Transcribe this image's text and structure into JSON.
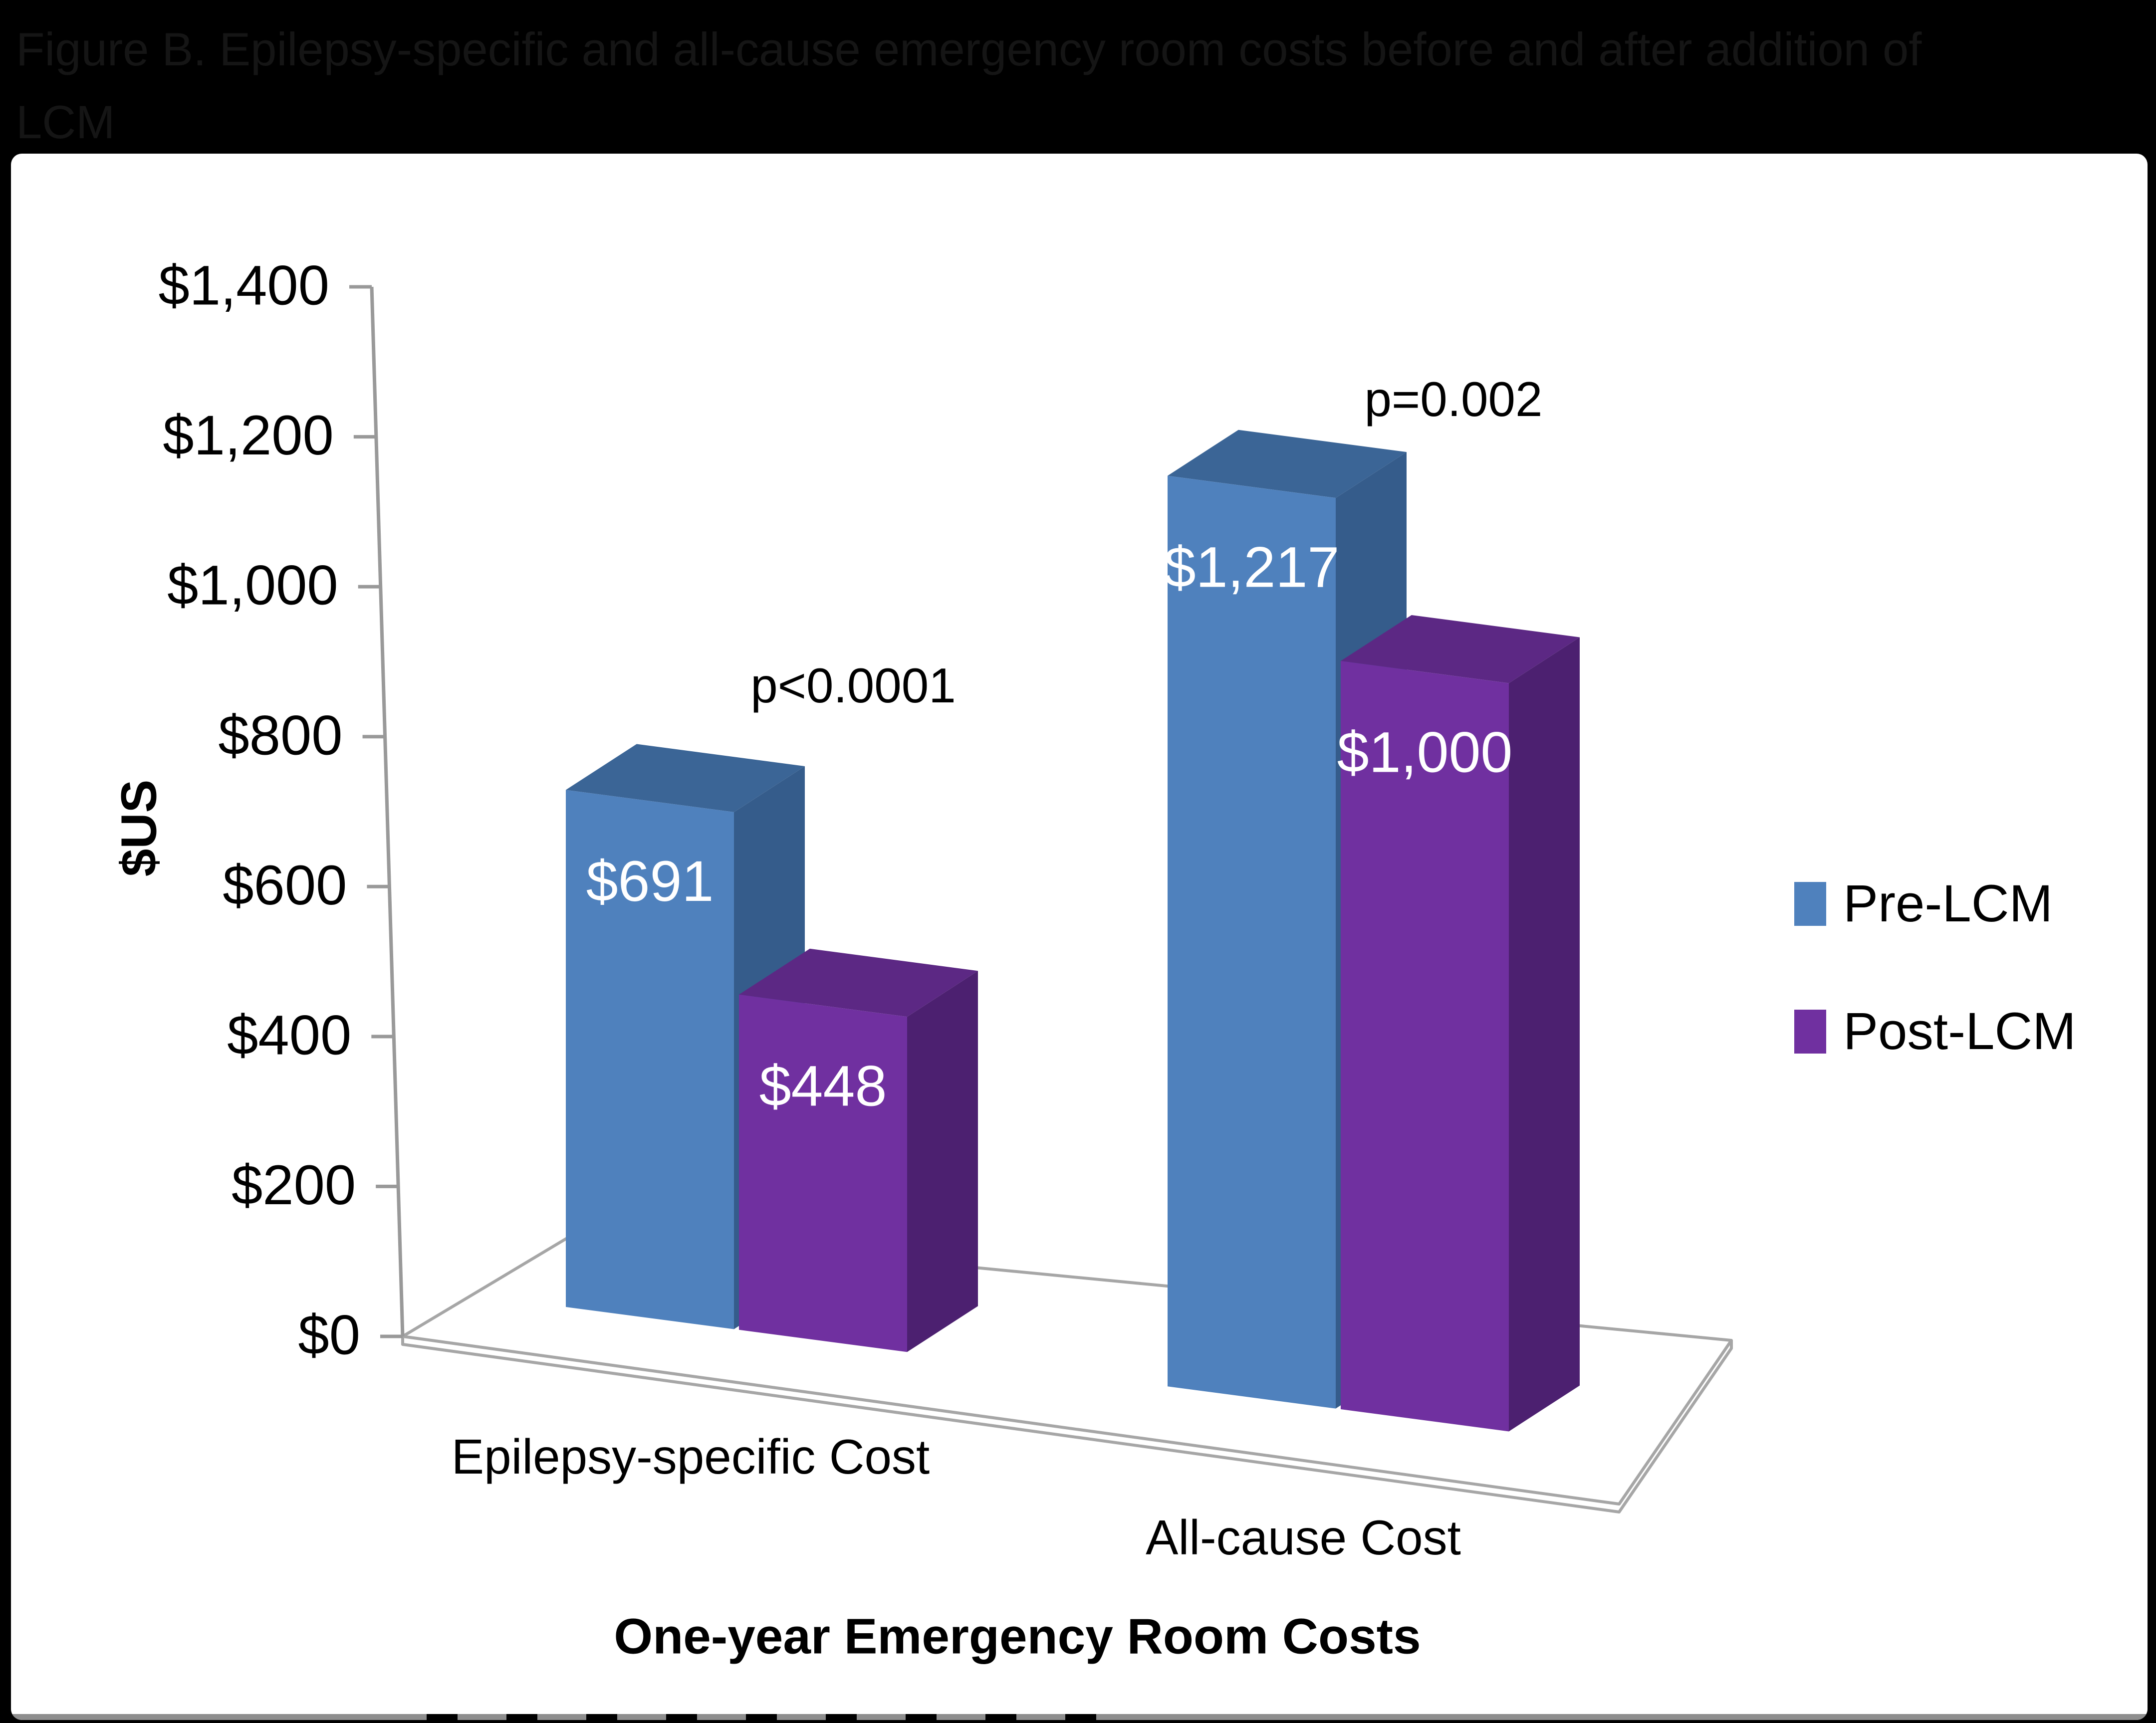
{
  "title": {
    "line1": "Figure B. Epilepsy-specific and all-cause emergency room costs before and after addition of",
    "line2": "LCM",
    "full": "Figure B. Epilepsy-specific and all-cause emergency room costs before and after addition of LCM"
  },
  "chart_data": {
    "type": "bar",
    "style": "3d-clustered-column",
    "title": "Figure B. Epilepsy-specific and all-cause emergency room costs before and after addition of LCM",
    "categories": [
      "Epilepsy-specific Cost",
      "All-cause Cost"
    ],
    "series": [
      {
        "name": "Pre-LCM",
        "color": "#4F81BD",
        "top_color": "#3B6596",
        "side_color": "#355C8B",
        "values": [
          691,
          1217
        ],
        "data_labels": [
          "$691",
          "$1,217"
        ]
      },
      {
        "name": "Post-LCM",
        "color": "#7030A0",
        "top_color": "#5C2884",
        "side_color": "#4C2070",
        "values": [
          448,
          1000
        ],
        "data_labels": [
          "$448",
          "$1,000"
        ]
      }
    ],
    "annotations": [
      {
        "text": "p<0.0001",
        "category": "Epilepsy-specific Cost"
      },
      {
        "text": "p=0.002",
        "category": "All-cause Cost"
      }
    ],
    "xlabel": "One-year Emergency Room Costs",
    "ylabel": "$US",
    "y_ticks": [
      "$0",
      "$200",
      "$400",
      "$600",
      "$800",
      "$1,000",
      "$1,200",
      "$1,400"
    ],
    "ylim": [
      0,
      1400
    ],
    "y_tick_interval": 200,
    "grid": false,
    "legend_position": "right",
    "data_label_color": "#ffffff",
    "axis_color": "#999999"
  },
  "legend": {
    "items": [
      {
        "label": "Pre-LCM",
        "color": "#4F81BD"
      },
      {
        "label": "Post-LCM",
        "color": "#7030A0"
      }
    ]
  }
}
